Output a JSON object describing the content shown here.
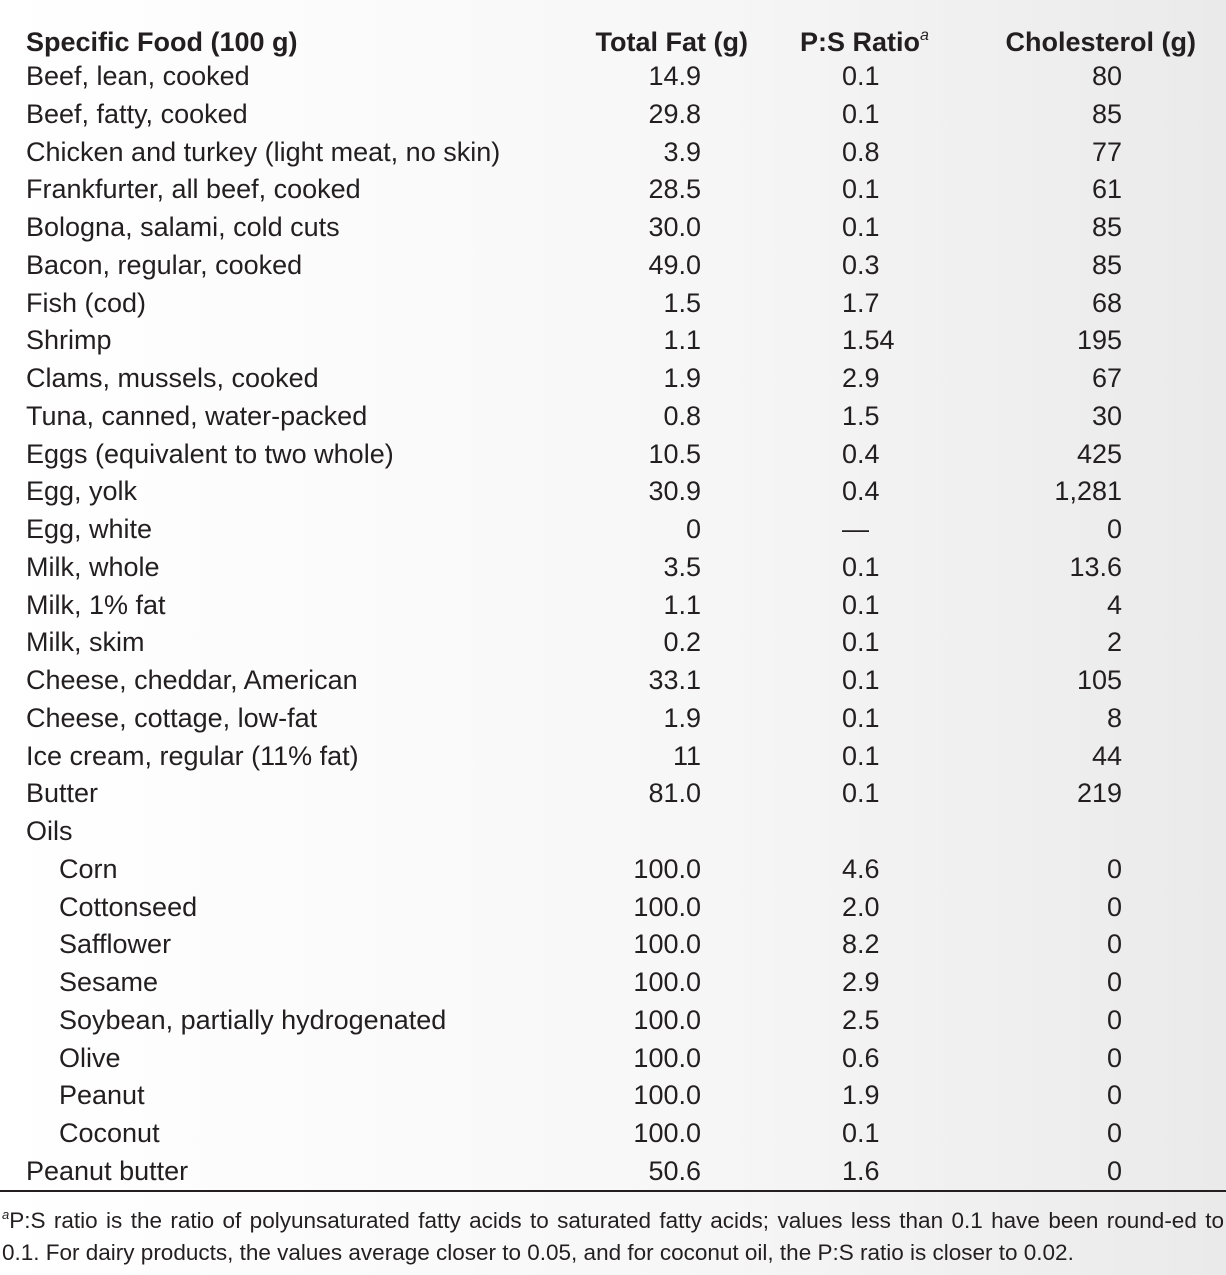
{
  "headers": {
    "food": "Specific Food (100 g)",
    "fat": "Total Fat (g)",
    "ps": "P:S Ratio",
    "ps_marker": "a",
    "chol": "Cholesterol (g)"
  },
  "rows": [
    {
      "food": "Beef, lean, cooked",
      "fat": "14.9",
      "ps": "0.1",
      "chol": "80"
    },
    {
      "food": "Beef, fatty, cooked",
      "fat": "29.8",
      "ps": "0.1",
      "chol": "85"
    },
    {
      "food": "Chicken and turkey (light meat, no skin)",
      "fat": "3.9",
      "ps": "0.8",
      "chol": "77"
    },
    {
      "food": "Frankfurter, all beef, cooked",
      "fat": "28.5",
      "ps": "0.1",
      "chol": "61"
    },
    {
      "food": "Bologna, salami, cold cuts",
      "fat": "30.0",
      "ps": "0.1",
      "chol": "85"
    },
    {
      "food": "Bacon, regular, cooked",
      "fat": "49.0",
      "ps": "0.3",
      "chol": "85"
    },
    {
      "food": "Fish (cod)",
      "fat": "1.5",
      "ps": "1.7",
      "chol": "68"
    },
    {
      "food": "Shrimp",
      "fat": "1.1",
      "ps": "1.54",
      "chol": "195"
    },
    {
      "food": "Clams, mussels, cooked",
      "fat": "1.9",
      "ps": "2.9",
      "chol": "67"
    },
    {
      "food": "Tuna, canned, water-packed",
      "fat": "0.8",
      "ps": "1.5",
      "chol": "30"
    },
    {
      "food": "Eggs (equivalent to two whole)",
      "fat": "10.5",
      "ps": "0.4",
      "chol": "425"
    },
    {
      "food": "Egg, yolk",
      "fat": "30.9",
      "ps": "0.4",
      "chol": "1,281"
    },
    {
      "food": "Egg, white",
      "fat": "0",
      "ps": "—",
      "chol": "0"
    },
    {
      "food": "Milk, whole",
      "fat": "3.5",
      "ps": "0.1",
      "chol": "13.6"
    },
    {
      "food": "Milk, 1% fat",
      "fat": "1.1",
      "ps": "0.1",
      "chol": "4"
    },
    {
      "food": "Milk, skim",
      "fat": "0.2",
      "ps": "0.1",
      "chol": "2"
    },
    {
      "food": "Cheese, cheddar, American",
      "fat": "33.1",
      "ps": "0.1",
      "chol": "105"
    },
    {
      "food": "Cheese, cottage, low-fat",
      "fat": "1.9",
      "ps": "0.1",
      "chol": "8"
    },
    {
      "food": "Ice cream, regular (11% fat)",
      "fat": "11",
      "ps": "0.1",
      "chol": "44"
    },
    {
      "food": "Butter",
      "fat": "81.0",
      "ps": "0.1",
      "chol": "219"
    },
    {
      "food": "Oils",
      "fat": "",
      "ps": "",
      "chol": ""
    },
    {
      "food": "Corn",
      "fat": "100.0",
      "ps": "4.6",
      "chol": "0",
      "indent": true
    },
    {
      "food": "Cottonseed",
      "fat": "100.0",
      "ps": "2.0",
      "chol": "0",
      "indent": true
    },
    {
      "food": "Safflower",
      "fat": "100.0",
      "ps": "8.2",
      "chol": "0",
      "indent": true
    },
    {
      "food": "Sesame",
      "fat": "100.0",
      "ps": "2.9",
      "chol": "0",
      "indent": true
    },
    {
      "food": "Soybean, partially hydrogenated",
      "fat": "100.0",
      "ps": "2.5",
      "chol": "0",
      "indent": true
    },
    {
      "food": "Olive",
      "fat": "100.0",
      "ps": "0.6",
      "chol": "0",
      "indent": true
    },
    {
      "food": "Peanut",
      "fat": "100.0",
      "ps": "1.9",
      "chol": "0",
      "indent": true
    },
    {
      "food": "Coconut",
      "fat": "100.0",
      "ps": "0.1",
      "chol": "0",
      "indent": true
    },
    {
      "food": "Peanut butter",
      "fat": "50.6",
      "ps": "1.6",
      "chol": "0"
    }
  ],
  "footnote": {
    "marker": "a",
    "text": "P:S ratio is the ratio of polyunsaturated fatty acids to saturated fatty acids; values less than 0.1 have been round-ed to 0.1. For dairy products, the values average closer to 0.05, and for coconut oil, the P:S ratio is closer to 0.02."
  }
}
